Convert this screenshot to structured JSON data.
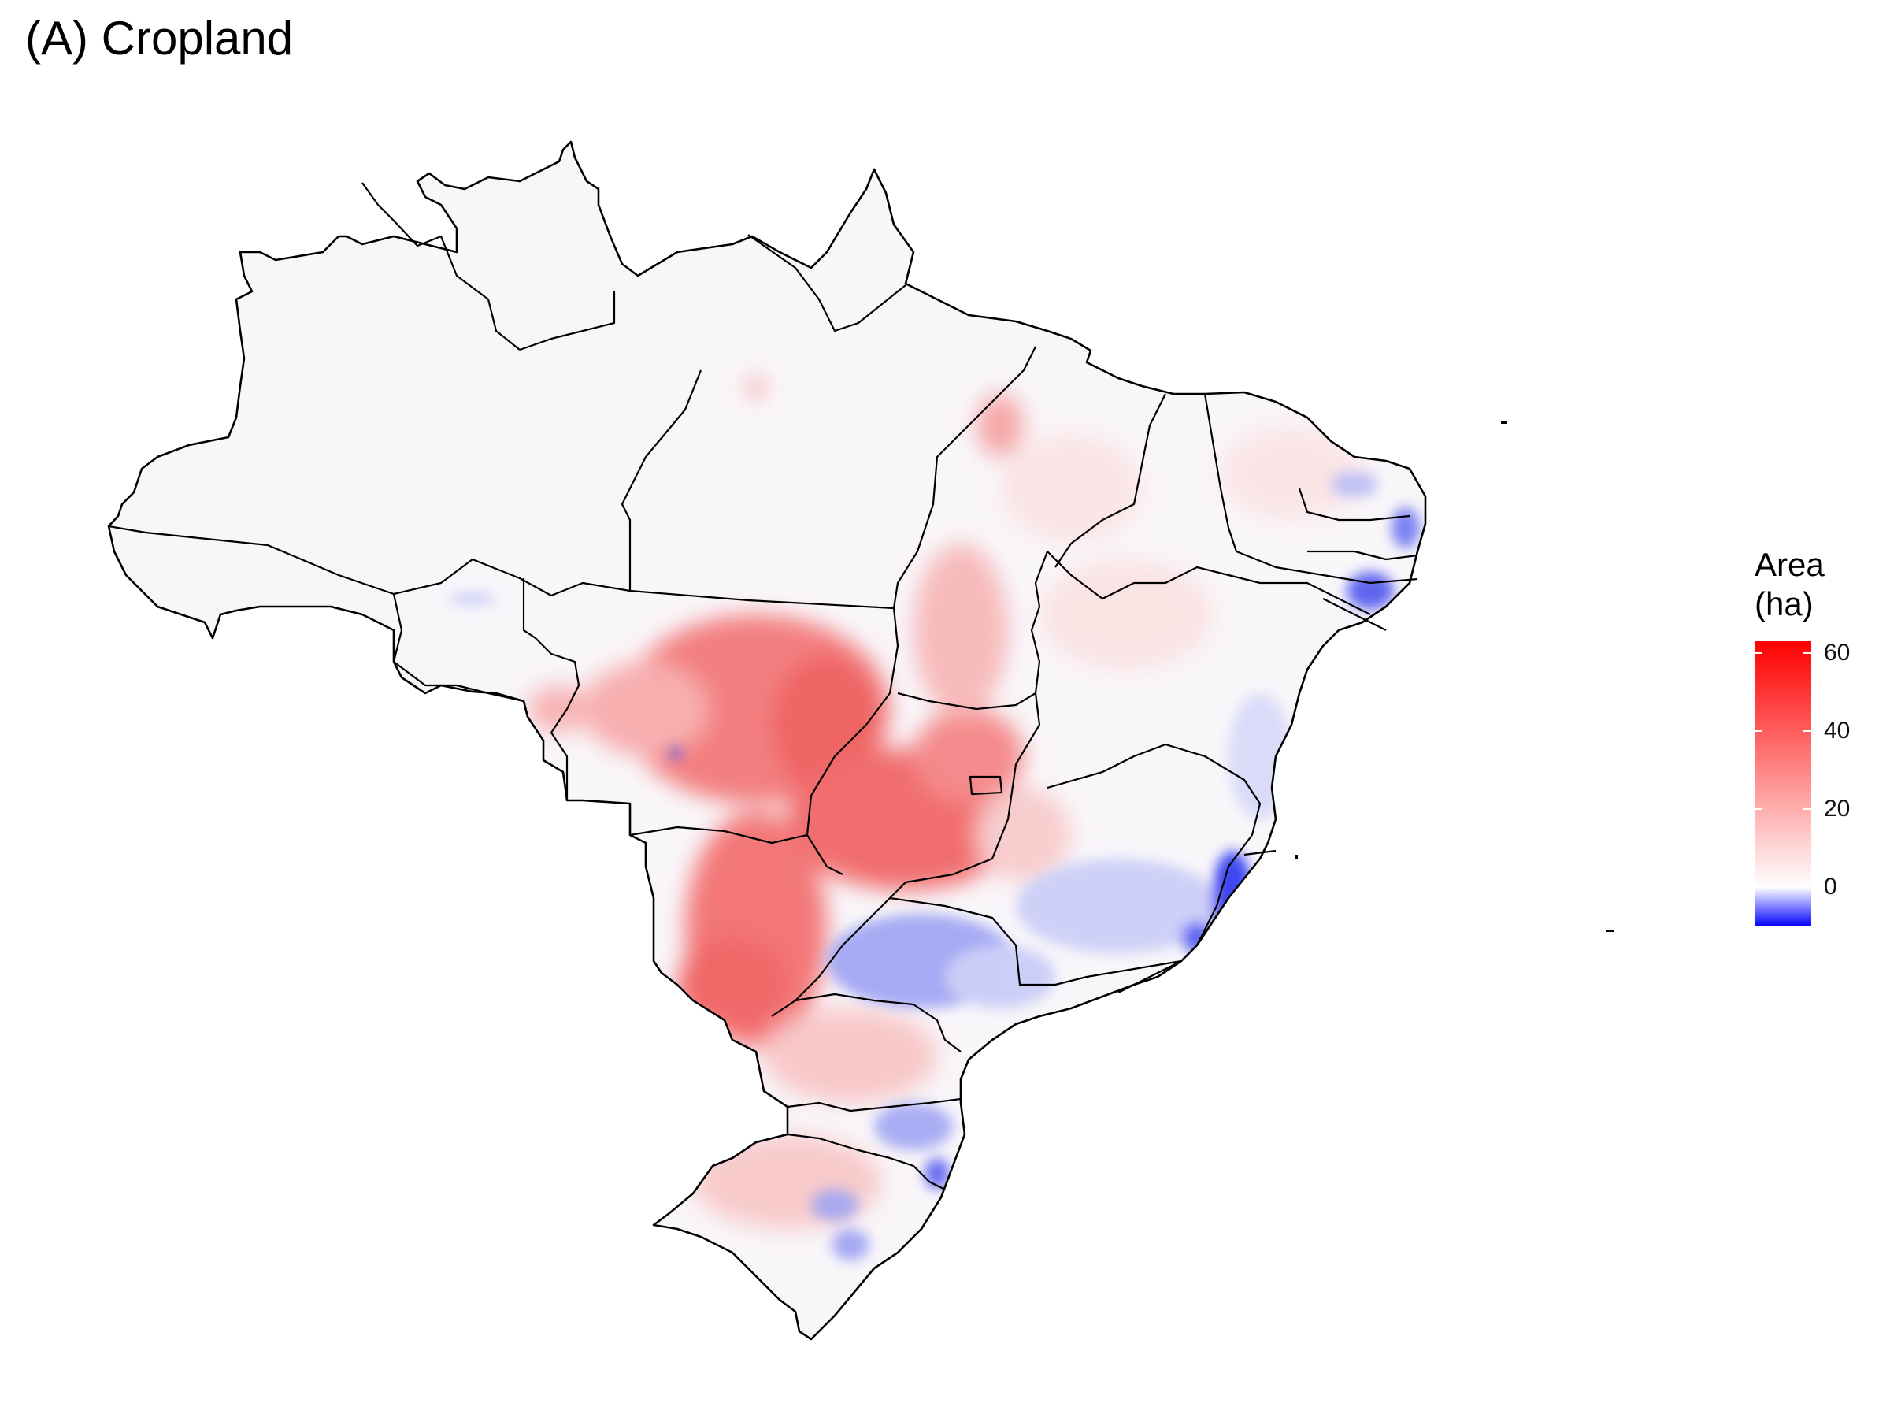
{
  "title": "(A) Cropland",
  "legend": {
    "title_line1": "Area",
    "title_line2": "(ha)",
    "min": -10,
    "max": 63,
    "ticks": [
      {
        "value": 60,
        "label": "60"
      },
      {
        "value": 40,
        "label": "40"
      },
      {
        "value": 20,
        "label": "20"
      },
      {
        "value": 0,
        "label": "0"
      }
    ],
    "colors": {
      "low": "#0000ff",
      "mid": "#ffffff",
      "high": "#ff0000"
    }
  },
  "map": {
    "region": "Brazil",
    "variable": "Cropland",
    "fill_default": "#f9f6fa",
    "boundary_color": "#000000"
  }
}
